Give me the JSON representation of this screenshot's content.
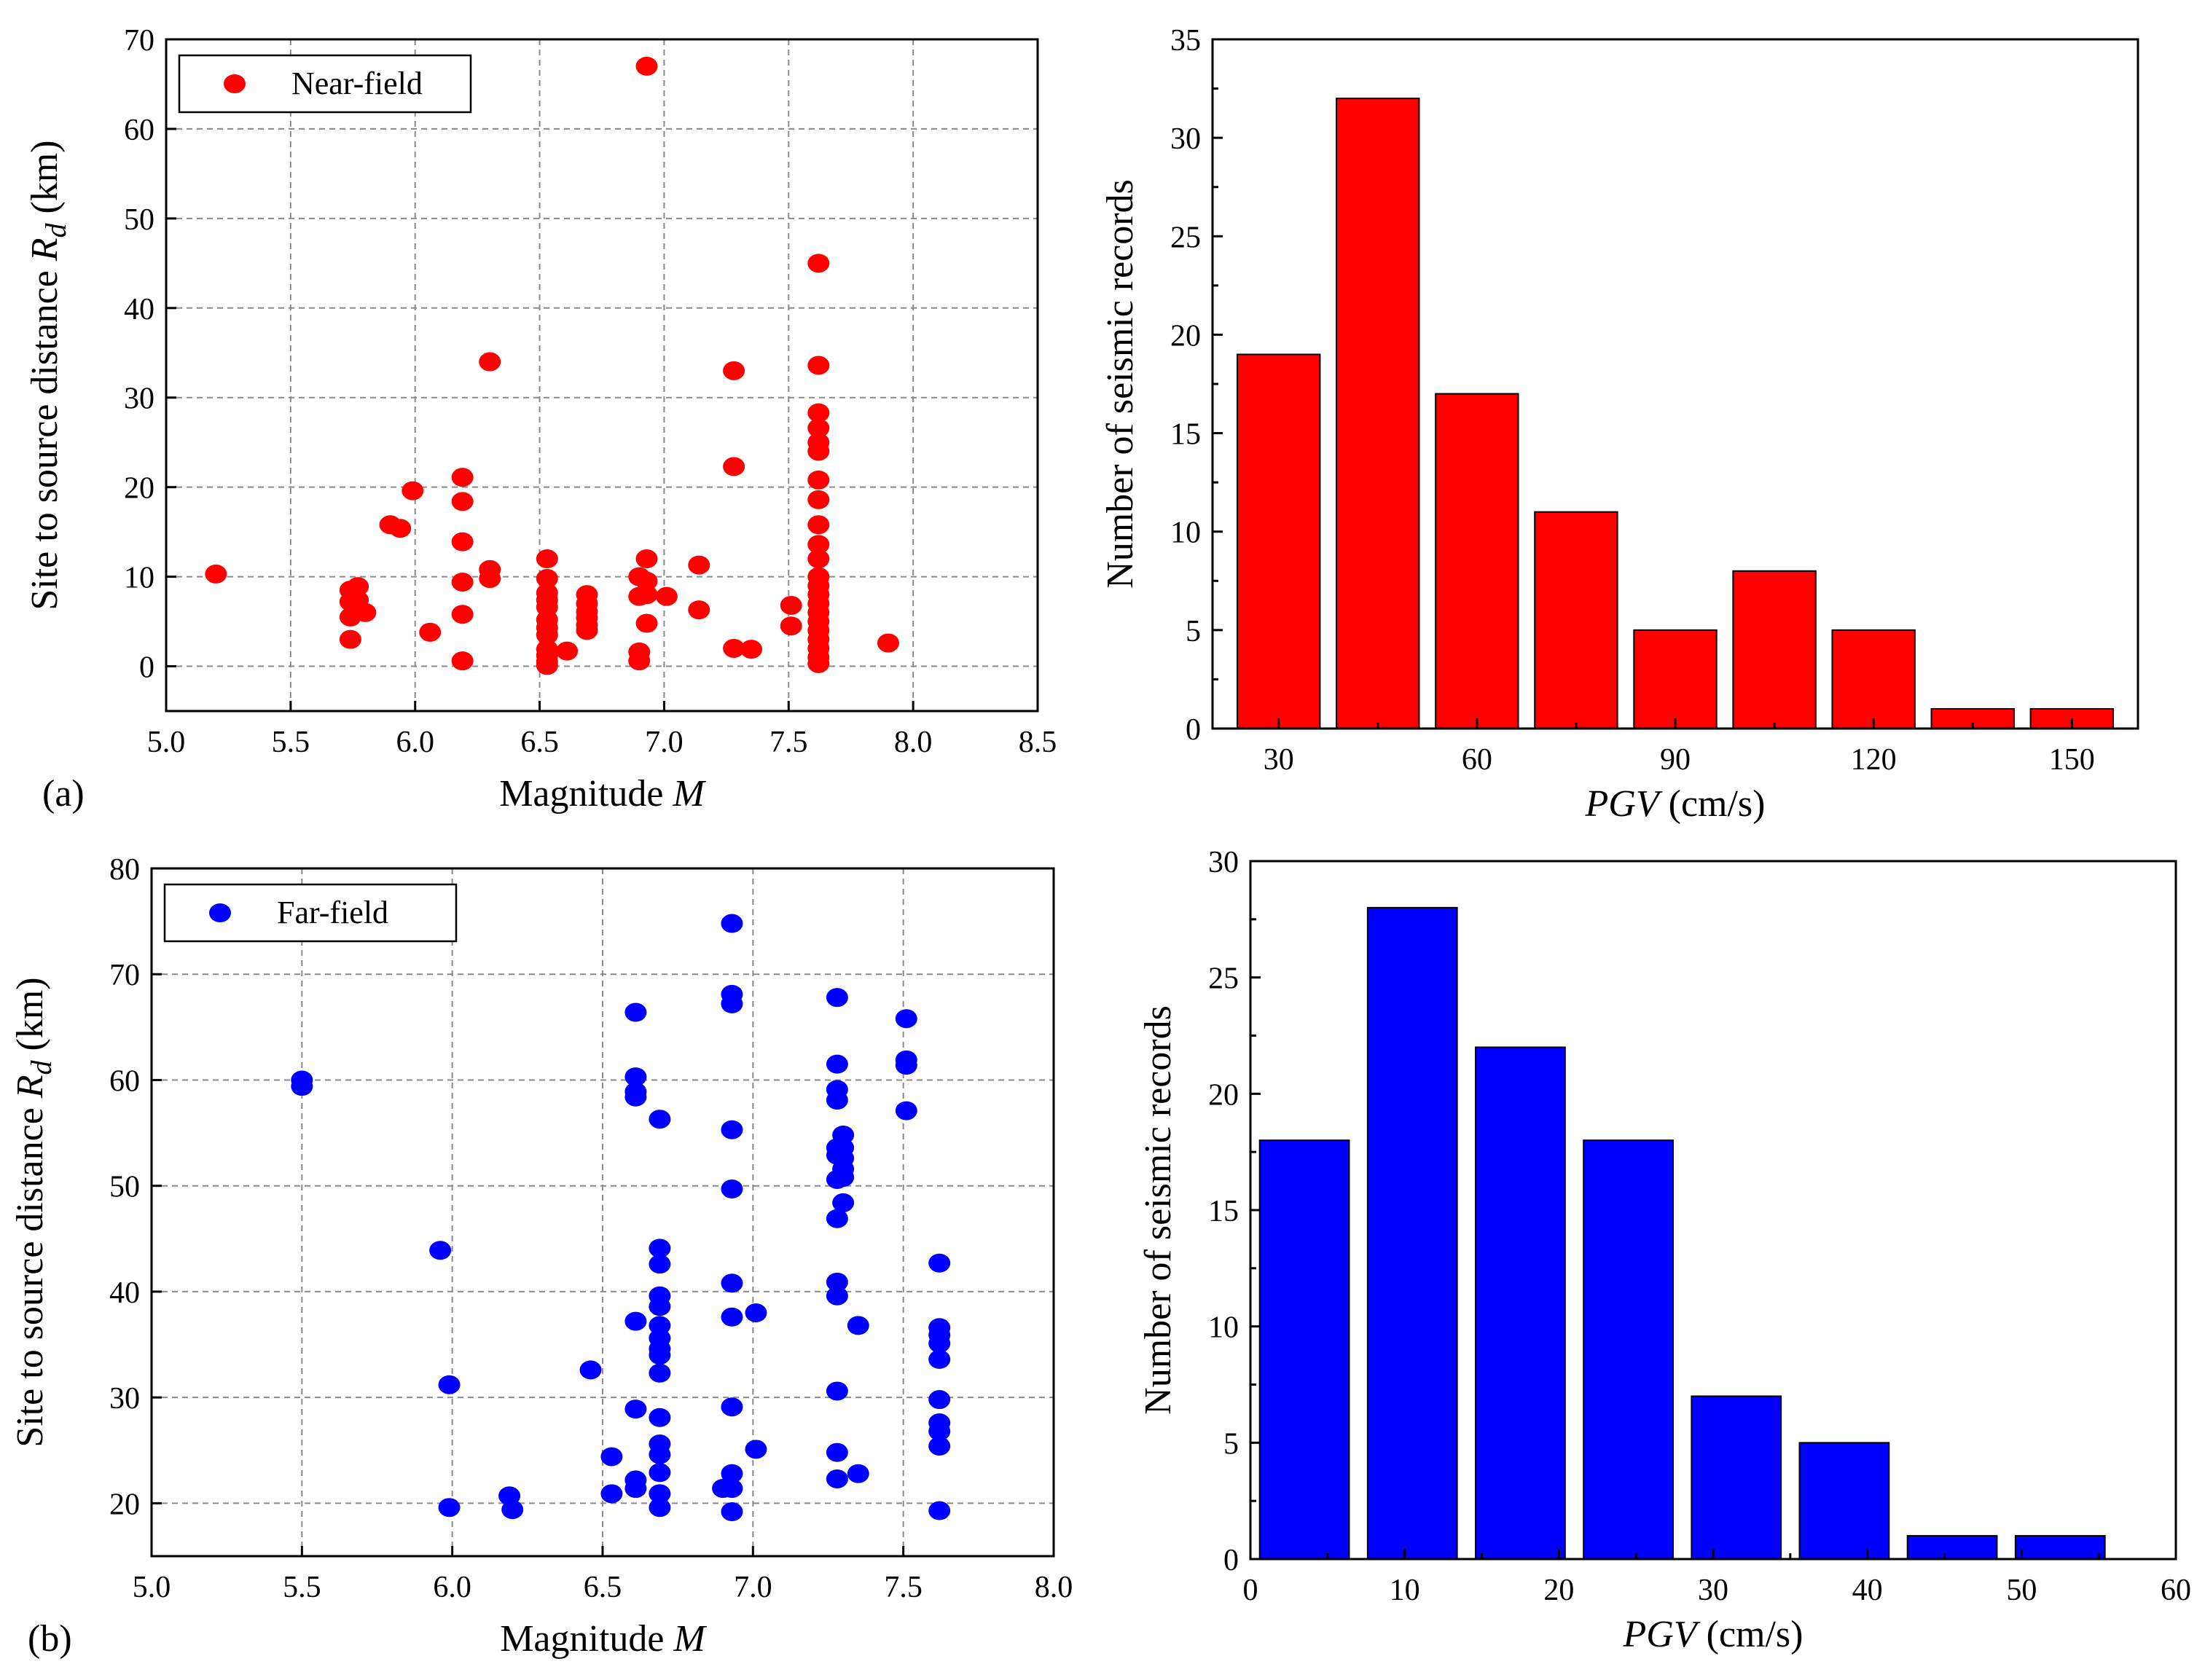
{
  "colors": {
    "near": "#ff0000",
    "far": "#0000ff"
  },
  "chart_data": [
    {
      "id": "a-scatter",
      "type": "scatter",
      "panel_label": "(a)",
      "xlabel_pre": "Magnitude ",
      "xlabel_var": "M",
      "ylabel_pre": "Site to source distance ",
      "ylabel_var": "R",
      "ylabel_sub": "d",
      "ylabel_post": " (km)",
      "xlim": [
        5.0,
        8.5
      ],
      "ylim": [
        -5,
        70
      ],
      "xticks": [
        5.0,
        5.5,
        6.0,
        6.5,
        7.0,
        7.5,
        8.0,
        8.5
      ],
      "xtick_labels": [
        "5.0",
        "5.5",
        "6.0",
        "6.5",
        "7.0",
        "7.5",
        "8.0",
        "8.5"
      ],
      "yticks": [
        0,
        10,
        20,
        30,
        40,
        50,
        60,
        70
      ],
      "ytick_labels": [
        "0",
        "10",
        "20",
        "30",
        "40",
        "50",
        "60",
        "70"
      ],
      "legend": "Near-field",
      "points": [
        [
          5.2,
          10.3
        ],
        [
          5.74,
          8.5
        ],
        [
          5.74,
          7.2
        ],
        [
          5.74,
          5.5
        ],
        [
          5.74,
          3.0
        ],
        [
          5.77,
          8.9
        ],
        [
          5.77,
          7.4
        ],
        [
          5.8,
          6.0
        ],
        [
          5.9,
          15.8
        ],
        [
          5.94,
          15.4
        ],
        [
          5.99,
          19.6
        ],
        [
          6.06,
          3.8
        ],
        [
          6.19,
          21.1
        ],
        [
          6.19,
          18.4
        ],
        [
          6.19,
          13.9
        ],
        [
          6.19,
          9.4
        ],
        [
          6.19,
          5.8
        ],
        [
          6.19,
          0.6
        ],
        [
          6.3,
          34.0
        ],
        [
          6.3,
          10.8
        ],
        [
          6.3,
          9.8
        ],
        [
          6.53,
          12.0
        ],
        [
          6.53,
          9.8
        ],
        [
          6.53,
          8.2
        ],
        [
          6.53,
          7.4
        ],
        [
          6.53,
          6.6
        ],
        [
          6.53,
          5.2
        ],
        [
          6.53,
          4.3
        ],
        [
          6.53,
          3.5
        ],
        [
          6.53,
          1.9
        ],
        [
          6.53,
          1.2
        ],
        [
          6.53,
          0.5
        ],
        [
          6.53,
          0.1
        ],
        [
          6.61,
          1.7
        ],
        [
          6.69,
          8.0
        ],
        [
          6.69,
          7.0
        ],
        [
          6.69,
          6.1
        ],
        [
          6.69,
          5.4
        ],
        [
          6.69,
          4.6
        ],
        [
          6.69,
          4.0
        ],
        [
          6.9,
          10.0
        ],
        [
          6.9,
          7.8
        ],
        [
          6.9,
          1.6
        ],
        [
          6.9,
          0.6
        ],
        [
          6.93,
          67.0
        ],
        [
          6.93,
          12.0
        ],
        [
          6.93,
          9.5
        ],
        [
          6.93,
          8.0
        ],
        [
          6.93,
          4.8
        ],
        [
          7.01,
          7.8
        ],
        [
          7.14,
          11.3
        ],
        [
          7.14,
          6.3
        ],
        [
          7.28,
          33.0
        ],
        [
          7.28,
          22.3
        ],
        [
          7.28,
          2.0
        ],
        [
          7.35,
          1.9
        ],
        [
          7.51,
          6.8
        ],
        [
          7.51,
          4.5
        ],
        [
          7.62,
          45.0
        ],
        [
          7.62,
          33.6
        ],
        [
          7.62,
          28.3
        ],
        [
          7.62,
          26.6
        ],
        [
          7.62,
          25.0
        ],
        [
          7.62,
          24.0
        ],
        [
          7.62,
          20.8
        ],
        [
          7.62,
          18.6
        ],
        [
          7.62,
          15.8
        ],
        [
          7.62,
          13.6
        ],
        [
          7.62,
          12.0
        ],
        [
          7.62,
          10.0
        ],
        [
          7.62,
          9.0
        ],
        [
          7.62,
          8.0
        ],
        [
          7.62,
          7.0
        ],
        [
          7.62,
          6.0
        ],
        [
          7.62,
          5.0
        ],
        [
          7.62,
          4.0
        ],
        [
          7.62,
          3.0
        ],
        [
          7.62,
          2.0
        ],
        [
          7.62,
          1.0
        ],
        [
          7.62,
          0.3
        ],
        [
          7.9,
          2.6
        ]
      ]
    },
    {
      "id": "a-hist",
      "type": "bar",
      "xlabel_var": "PGV",
      "xlabel_post": " (cm/s)",
      "ylabel": "Number of seismic records",
      "xlim": [
        20,
        160
      ],
      "ylim": [
        0,
        35
      ],
      "xticks": [
        30,
        60,
        90,
        120,
        150
      ],
      "xtick_labels": [
        "30",
        "60",
        "90",
        "120",
        "150"
      ],
      "yticks": [
        0,
        5,
        10,
        15,
        20,
        25,
        30,
        35
      ],
      "ytick_labels": [
        "0",
        "5",
        "10",
        "15",
        "20",
        "25",
        "30",
        "35"
      ],
      "bin_width": 15,
      "bar_width": 12.5,
      "centers": [
        30,
        45,
        60,
        75,
        90,
        105,
        120,
        135,
        150
      ],
      "values": [
        19,
        32,
        17,
        11,
        5,
        8,
        5,
        1,
        1
      ]
    },
    {
      "id": "b-scatter",
      "type": "scatter",
      "panel_label": "(b)",
      "xlabel_pre": "Magnitude ",
      "xlabel_var": "M",
      "ylabel_pre": "Site to source distance ",
      "ylabel_var": "R",
      "ylabel_sub": "d",
      "ylabel_post": " (km)",
      "xlim": [
        5.0,
        8.0
      ],
      "ylim": [
        15,
        80
      ],
      "xticks": [
        5.0,
        5.5,
        6.0,
        6.5,
        7.0,
        7.5,
        8.0
      ],
      "xtick_labels": [
        "5.0",
        "5.5",
        "6.0",
        "6.5",
        "7.0",
        "7.5",
        "8.0"
      ],
      "yticks": [
        20,
        30,
        40,
        50,
        60,
        70,
        80
      ],
      "ytick_labels": [
        "20",
        "30",
        "40",
        "50",
        "60",
        "70",
        "80"
      ],
      "legend": "Far-field",
      "points": [
        [
          5.5,
          60.0
        ],
        [
          5.5,
          59.4
        ],
        [
          5.96,
          43.9
        ],
        [
          5.99,
          31.2
        ],
        [
          5.99,
          19.6
        ],
        [
          6.19,
          20.7
        ],
        [
          6.2,
          19.4
        ],
        [
          6.46,
          32.6
        ],
        [
          6.53,
          24.4
        ],
        [
          6.53,
          20.9
        ],
        [
          6.61,
          66.4
        ],
        [
          6.61,
          60.3
        ],
        [
          6.61,
          58.9
        ],
        [
          6.61,
          58.4
        ],
        [
          6.61,
          37.2
        ],
        [
          6.61,
          28.9
        ],
        [
          6.61,
          22.2
        ],
        [
          6.61,
          21.4
        ],
        [
          6.69,
          56.3
        ],
        [
          6.69,
          44.1
        ],
        [
          6.69,
          42.6
        ],
        [
          6.69,
          39.6
        ],
        [
          6.69,
          38.6
        ],
        [
          6.69,
          36.8
        ],
        [
          6.69,
          35.6
        ],
        [
          6.69,
          34.6
        ],
        [
          6.69,
          34.0
        ],
        [
          6.69,
          32.3
        ],
        [
          6.69,
          28.1
        ],
        [
          6.69,
          25.6
        ],
        [
          6.69,
          24.6
        ],
        [
          6.69,
          22.9
        ],
        [
          6.69,
          20.9
        ],
        [
          6.69,
          19.6
        ],
        [
          6.9,
          21.4
        ],
        [
          6.93,
          74.8
        ],
        [
          6.93,
          68.1
        ],
        [
          6.93,
          67.2
        ],
        [
          6.93,
          55.3
        ],
        [
          6.93,
          49.7
        ],
        [
          6.93,
          40.8
        ],
        [
          6.93,
          37.6
        ],
        [
          6.93,
          29.1
        ],
        [
          6.93,
          22.8
        ],
        [
          6.93,
          21.4
        ],
        [
          6.93,
          19.2
        ],
        [
          7.01,
          38.0
        ],
        [
          7.01,
          25.1
        ],
        [
          7.28,
          67.8
        ],
        [
          7.28,
          61.5
        ],
        [
          7.28,
          59.1
        ],
        [
          7.28,
          58.1
        ],
        [
          7.28,
          53.6
        ],
        [
          7.28,
          52.9
        ],
        [
          7.28,
          50.6
        ],
        [
          7.28,
          46.9
        ],
        [
          7.28,
          40.9
        ],
        [
          7.28,
          39.6
        ],
        [
          7.28,
          30.6
        ],
        [
          7.28,
          24.8
        ],
        [
          7.28,
          22.3
        ],
        [
          7.3,
          54.8
        ],
        [
          7.3,
          53.6
        ],
        [
          7.3,
          52.6
        ],
        [
          7.3,
          51.6
        ],
        [
          7.3,
          50.8
        ],
        [
          7.3,
          48.4
        ],
        [
          7.35,
          36.8
        ],
        [
          7.35,
          22.8
        ],
        [
          7.51,
          65.8
        ],
        [
          7.51,
          61.9
        ],
        [
          7.51,
          61.4
        ],
        [
          7.51,
          57.1
        ],
        [
          7.62,
          42.7
        ],
        [
          7.62,
          36.6
        ],
        [
          7.62,
          35.9
        ],
        [
          7.62,
          35.1
        ],
        [
          7.62,
          33.6
        ],
        [
          7.62,
          29.8
        ],
        [
          7.62,
          27.6
        ],
        [
          7.62,
          26.8
        ],
        [
          7.62,
          25.4
        ],
        [
          7.62,
          19.3
        ]
      ]
    },
    {
      "id": "b-hist",
      "type": "bar",
      "xlabel_var": "PGV",
      "xlabel_post": " (cm/s)",
      "ylabel": "Number of seismic records",
      "xlim": [
        0,
        60
      ],
      "ylim": [
        0,
        30
      ],
      "xticks": [
        0,
        10,
        20,
        30,
        40,
        50,
        60
      ],
      "xtick_labels": [
        "0",
        "10",
        "20",
        "30",
        "40",
        "50",
        "60"
      ],
      "yticks": [
        0,
        5,
        10,
        15,
        20,
        25,
        30
      ],
      "ytick_labels": [
        "0",
        "5",
        "10",
        "15",
        "20",
        "25",
        "30"
      ],
      "bin_width": 7,
      "bar_width": 5.8,
      "centers": [
        3.5,
        10.5,
        17.5,
        24.5,
        31.5,
        38.5,
        45.5,
        52.5
      ],
      "values": [
        18,
        28,
        22,
        18,
        7,
        5,
        1,
        1
      ]
    }
  ]
}
